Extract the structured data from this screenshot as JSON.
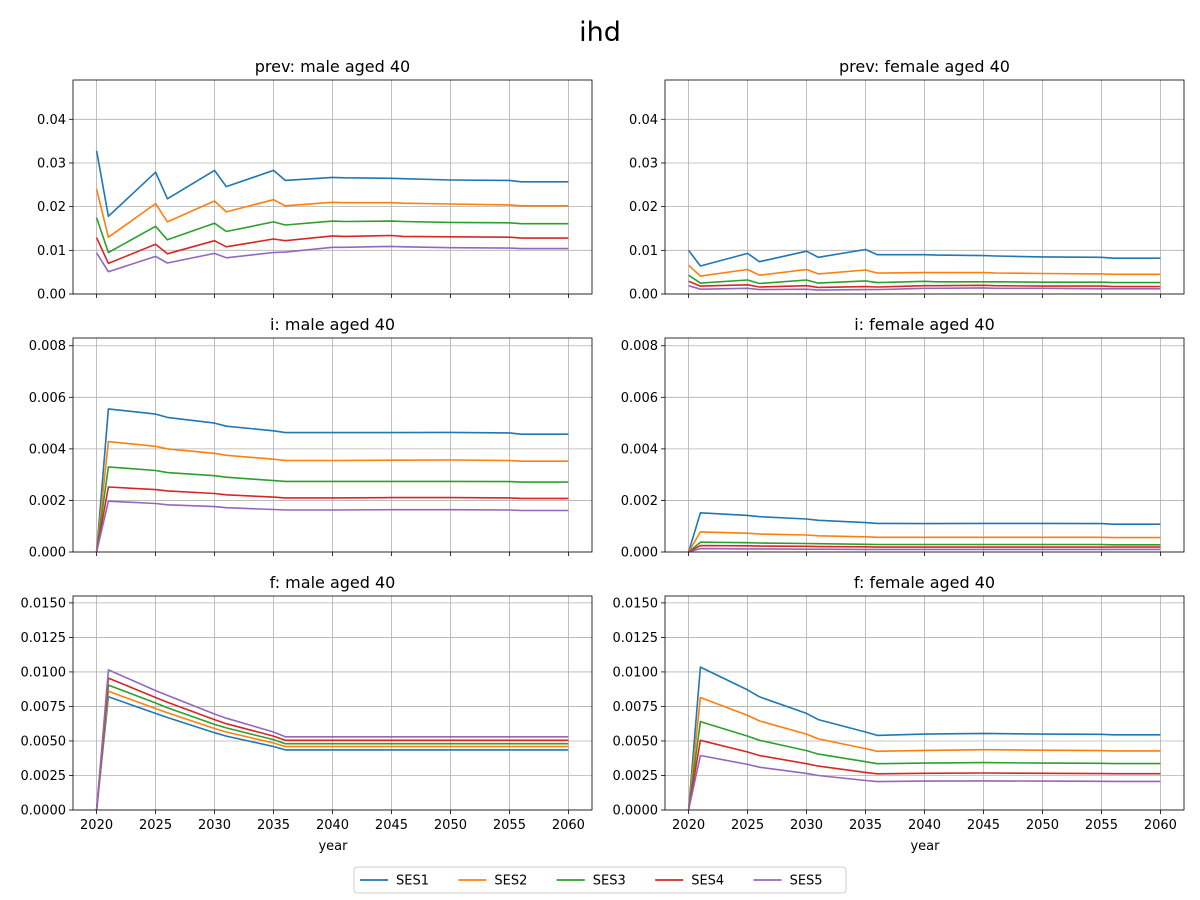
{
  "figure": {
    "title": "ihd",
    "xlabel": "year"
  },
  "legend": {
    "placement": "bottom-center",
    "entries": [
      {
        "name": "SES1",
        "color": "#1f77b4"
      },
      {
        "name": "SES2",
        "color": "#ff7f0e"
      },
      {
        "name": "SES3",
        "color": "#2ca02c"
      },
      {
        "name": "SES4",
        "color": "#d62728"
      },
      {
        "name": "SES5",
        "color": "#9467bd"
      }
    ]
  },
  "chart_data": [
    {
      "type": "line",
      "title": "prev: male aged 40",
      "x": [
        2020,
        2021,
        2025,
        2026,
        2030,
        2031,
        2035,
        2036,
        2040,
        2041,
        2045,
        2046,
        2050,
        2055,
        2056,
        2060
      ],
      "xlim": [
        2018,
        2062
      ],
      "xticks": [
        2020,
        2025,
        2030,
        2035,
        2040,
        2045,
        2050,
        2055,
        2060
      ],
      "ylim": [
        0,
        0.049
      ],
      "yticks": [
        "0.00",
        "0.01",
        "0.02",
        "0.03",
        "0.04"
      ],
      "grid": true,
      "series": [
        {
          "name": "SES1",
          "values": [
            0.0328,
            0.0178,
            0.0279,
            0.0218,
            0.0283,
            0.0246,
            0.0283,
            0.026,
            0.0267,
            0.0266,
            0.0265,
            0.0264,
            0.0261,
            0.026,
            0.0257,
            0.0257
          ]
        },
        {
          "name": "SES2",
          "values": [
            0.024,
            0.013,
            0.0207,
            0.0165,
            0.0213,
            0.0188,
            0.0216,
            0.0202,
            0.021,
            0.0209,
            0.0209,
            0.0208,
            0.0206,
            0.0204,
            0.0202,
            0.0202
          ]
        },
        {
          "name": "SES3",
          "values": [
            0.0175,
            0.0095,
            0.0155,
            0.0124,
            0.0162,
            0.0143,
            0.0165,
            0.0158,
            0.0167,
            0.0166,
            0.0167,
            0.0166,
            0.0164,
            0.0163,
            0.0161,
            0.0161
          ]
        },
        {
          "name": "SES4",
          "values": [
            0.0129,
            0.007,
            0.0114,
            0.0092,
            0.0122,
            0.0108,
            0.0126,
            0.0122,
            0.0133,
            0.0132,
            0.0134,
            0.0132,
            0.0131,
            0.013,
            0.0128,
            0.0128
          ]
        },
        {
          "name": "SES5",
          "values": [
            0.0094,
            0.0051,
            0.0086,
            0.0071,
            0.0093,
            0.0083,
            0.0095,
            0.0096,
            0.0107,
            0.0107,
            0.0109,
            0.0108,
            0.0106,
            0.0105,
            0.0104,
            0.0104
          ]
        }
      ]
    },
    {
      "type": "line",
      "title": "prev: female aged 40",
      "x": [
        2020,
        2021,
        2025,
        2026,
        2030,
        2031,
        2035,
        2036,
        2040,
        2041,
        2045,
        2046,
        2050,
        2055,
        2056,
        2060
      ],
      "xlim": [
        2018,
        2062
      ],
      "xticks": [
        2020,
        2025,
        2030,
        2035,
        2040,
        2045,
        2050,
        2055,
        2060
      ],
      "ylim": [
        0,
        0.049
      ],
      "yticks": [
        "0.00",
        "0.01",
        "0.02",
        "0.03",
        "0.04"
      ],
      "grid": true,
      "series": [
        {
          "name": "SES1",
          "values": [
            0.01,
            0.0064,
            0.0093,
            0.0074,
            0.0098,
            0.0084,
            0.0102,
            0.009,
            0.009,
            0.0089,
            0.0088,
            0.0087,
            0.0085,
            0.0084,
            0.0082,
            0.0082
          ]
        },
        {
          "name": "SES2",
          "values": [
            0.0066,
            0.0041,
            0.0056,
            0.0043,
            0.0056,
            0.0046,
            0.0055,
            0.0048,
            0.0049,
            0.0049,
            0.0049,
            0.0048,
            0.0047,
            0.0046,
            0.0045,
            0.0045
          ]
        },
        {
          "name": "SES3",
          "values": [
            0.0043,
            0.0025,
            0.0032,
            0.0024,
            0.0032,
            0.0025,
            0.003,
            0.0026,
            0.0029,
            0.0028,
            0.0028,
            0.0028,
            0.0027,
            0.0027,
            0.0026,
            0.0026
          ]
        },
        {
          "name": "SES4",
          "values": [
            0.0029,
            0.0018,
            0.0021,
            0.0016,
            0.0019,
            0.0015,
            0.0017,
            0.0016,
            0.0019,
            0.0019,
            0.002,
            0.0019,
            0.0018,
            0.0018,
            0.0017,
            0.0017
          ]
        },
        {
          "name": "SES5",
          "values": [
            0.0019,
            0.0011,
            0.0013,
            0.001,
            0.0011,
            0.0009,
            0.001,
            0.001,
            0.0013,
            0.0013,
            0.0014,
            0.0013,
            0.0013,
            0.0012,
            0.0012,
            0.0012
          ]
        }
      ]
    },
    {
      "type": "line",
      "title": "i: male aged 40",
      "x": [
        2020,
        2021,
        2025,
        2026,
        2030,
        2031,
        2035,
        2036,
        2040,
        2045,
        2050,
        2055,
        2056,
        2060
      ],
      "xlim": [
        2018,
        2062
      ],
      "xticks": [
        2020,
        2025,
        2030,
        2035,
        2040,
        2045,
        2050,
        2055,
        2060
      ],
      "ylim": [
        0,
        0.0083
      ],
      "yticks": [
        "0.000",
        "0.002",
        "0.004",
        "0.006",
        "0.008"
      ],
      "grid": true,
      "series": [
        {
          "name": "SES1",
          "values": [
            0,
            0.00555,
            0.00535,
            0.00522,
            0.005,
            0.00488,
            0.0047,
            0.00463,
            0.00463,
            0.00463,
            0.00464,
            0.00462,
            0.00457,
            0.00457
          ]
        },
        {
          "name": "SES2",
          "values": [
            0,
            0.00428,
            0.0041,
            0.004,
            0.00383,
            0.00375,
            0.0036,
            0.00355,
            0.00355,
            0.00356,
            0.00357,
            0.00355,
            0.00352,
            0.00352
          ]
        },
        {
          "name": "SES3",
          "values": [
            0,
            0.0033,
            0.00316,
            0.00308,
            0.00296,
            0.0029,
            0.00277,
            0.00274,
            0.00274,
            0.00274,
            0.00274,
            0.00273,
            0.00271,
            0.00271
          ]
        },
        {
          "name": "SES4",
          "values": [
            0,
            0.00252,
            0.00242,
            0.00237,
            0.00227,
            0.00222,
            0.00213,
            0.0021,
            0.0021,
            0.00211,
            0.00211,
            0.0021,
            0.00208,
            0.00208
          ]
        },
        {
          "name": "SES5",
          "values": [
            0,
            0.00197,
            0.00188,
            0.00183,
            0.00176,
            0.00172,
            0.00165,
            0.00163,
            0.00163,
            0.00164,
            0.00164,
            0.00163,
            0.00161,
            0.00161
          ]
        }
      ]
    },
    {
      "type": "line",
      "title": "i: female aged 40",
      "x": [
        2020,
        2021,
        2025,
        2026,
        2030,
        2031,
        2035,
        2036,
        2040,
        2045,
        2050,
        2055,
        2056,
        2060
      ],
      "xlim": [
        2018,
        2062
      ],
      "xticks": [
        2020,
        2025,
        2030,
        2035,
        2040,
        2045,
        2050,
        2055,
        2060
      ],
      "ylim": [
        0,
        0.0083
      ],
      "yticks": [
        "0.000",
        "0.002",
        "0.004",
        "0.006",
        "0.008"
      ],
      "grid": true,
      "series": [
        {
          "name": "SES1",
          "values": [
            0,
            0.00152,
            0.00142,
            0.00137,
            0.00128,
            0.00123,
            0.00114,
            0.00111,
            0.0011,
            0.00111,
            0.00111,
            0.0011,
            0.00108,
            0.00108
          ]
        },
        {
          "name": "SES2",
          "values": [
            0,
            0.00078,
            0.00073,
            0.0007,
            0.00066,
            0.00063,
            0.00059,
            0.00057,
            0.00057,
            0.00057,
            0.00057,
            0.00057,
            0.00056,
            0.00056
          ]
        },
        {
          "name": "SES3",
          "values": [
            0,
            0.00038,
            0.00036,
            0.00035,
            0.00033,
            0.00032,
            0.0003,
            0.00029,
            0.00029,
            0.00029,
            0.00029,
            0.00029,
            0.00028,
            0.00028
          ]
        },
        {
          "name": "SES4",
          "values": [
            0,
            0.00025,
            0.00024,
            0.00023,
            0.00022,
            0.00021,
            0.0002,
            0.00019,
            0.00019,
            0.00019,
            0.00019,
            0.00019,
            0.00019,
            0.00019
          ]
        },
        {
          "name": "SES5",
          "values": [
            0,
            0.00013,
            0.00012,
            0.00012,
            0.00011,
            0.00011,
            0.0001,
            0.0001,
            0.0001,
            0.0001,
            0.0001,
            0.0001,
            0.0001,
            0.0001
          ]
        }
      ]
    },
    {
      "type": "line",
      "title": "f: male aged 40",
      "x": [
        2020,
        2021,
        2025,
        2026,
        2030,
        2031,
        2035,
        2036,
        2040,
        2045,
        2050,
        2055,
        2056,
        2060
      ],
      "xlim": [
        2018,
        2062
      ],
      "xticks": [
        2020,
        2025,
        2030,
        2035,
        2040,
        2045,
        2050,
        2055,
        2060
      ],
      "ylim": [
        0,
        0.0155
      ],
      "yticks": [
        "0.0000",
        "0.0025",
        "0.0050",
        "0.0075",
        "0.0100",
        "0.0125",
        "0.0150"
      ],
      "grid": true,
      "series": [
        {
          "name": "SES1",
          "values": [
            0,
            0.0082,
            0.007,
            0.0067,
            0.0056,
            0.00535,
            0.0046,
            0.00435,
            0.00435,
            0.00435,
            0.00435,
            0.00435,
            0.00435,
            0.00435
          ]
        },
        {
          "name": "SES2",
          "values": [
            0,
            0.0086,
            0.00735,
            0.00705,
            0.0059,
            0.00565,
            0.00485,
            0.0046,
            0.0046,
            0.0046,
            0.0046,
            0.0046,
            0.0046,
            0.0046
          ]
        },
        {
          "name": "SES3",
          "values": [
            0,
            0.00905,
            0.00775,
            0.0074,
            0.0062,
            0.00595,
            0.0051,
            0.0048,
            0.0048,
            0.0048,
            0.0048,
            0.0048,
            0.0048,
            0.0048
          ]
        },
        {
          "name": "SES4",
          "values": [
            0,
            0.00955,
            0.00815,
            0.0078,
            0.00655,
            0.00625,
            0.00535,
            0.00505,
            0.00505,
            0.00505,
            0.00505,
            0.00505,
            0.00505,
            0.00505
          ]
        },
        {
          "name": "SES5",
          "values": [
            0,
            0.01015,
            0.00865,
            0.0083,
            0.00695,
            0.00665,
            0.00565,
            0.0053,
            0.0053,
            0.0053,
            0.0053,
            0.0053,
            0.0053,
            0.0053
          ]
        }
      ]
    },
    {
      "type": "line",
      "title": "f: female aged 40",
      "x": [
        2020,
        2021,
        2025,
        2026,
        2030,
        2031,
        2035,
        2036,
        2040,
        2045,
        2050,
        2055,
        2056,
        2060
      ],
      "xlim": [
        2018,
        2062
      ],
      "xticks": [
        2020,
        2025,
        2030,
        2035,
        2040,
        2045,
        2050,
        2055,
        2060
      ],
      "ylim": [
        0,
        0.0155
      ],
      "yticks": [
        "0.0000",
        "0.0025",
        "0.0050",
        "0.0075",
        "0.0100",
        "0.0125",
        "0.0150"
      ],
      "grid": true,
      "series": [
        {
          "name": "SES1",
          "values": [
            0,
            0.01035,
            0.0087,
            0.0082,
            0.007,
            0.00655,
            0.00565,
            0.0054,
            0.0055,
            0.00555,
            0.0055,
            0.00548,
            0.00545,
            0.00545
          ]
        },
        {
          "name": "SES2",
          "values": [
            0,
            0.00815,
            0.00685,
            0.00645,
            0.0055,
            0.00515,
            0.00445,
            0.00425,
            0.00432,
            0.00437,
            0.00433,
            0.0043,
            0.00428,
            0.00428
          ]
        },
        {
          "name": "SES3",
          "values": [
            0,
            0.0064,
            0.00535,
            0.00505,
            0.0043,
            0.00405,
            0.0035,
            0.00335,
            0.0034,
            0.00343,
            0.0034,
            0.00338,
            0.00336,
            0.00336
          ]
        },
        {
          "name": "SES4",
          "values": [
            0,
            0.00505,
            0.0042,
            0.00395,
            0.00335,
            0.00318,
            0.00272,
            0.00262,
            0.00266,
            0.00268,
            0.00266,
            0.00264,
            0.00263,
            0.00263
          ]
        },
        {
          "name": "SES5",
          "values": [
            0,
            0.00395,
            0.0033,
            0.0031,
            0.00265,
            0.0025,
            0.00214,
            0.00206,
            0.00209,
            0.00211,
            0.00209,
            0.00208,
            0.00207,
            0.00207
          ]
        }
      ]
    }
  ]
}
